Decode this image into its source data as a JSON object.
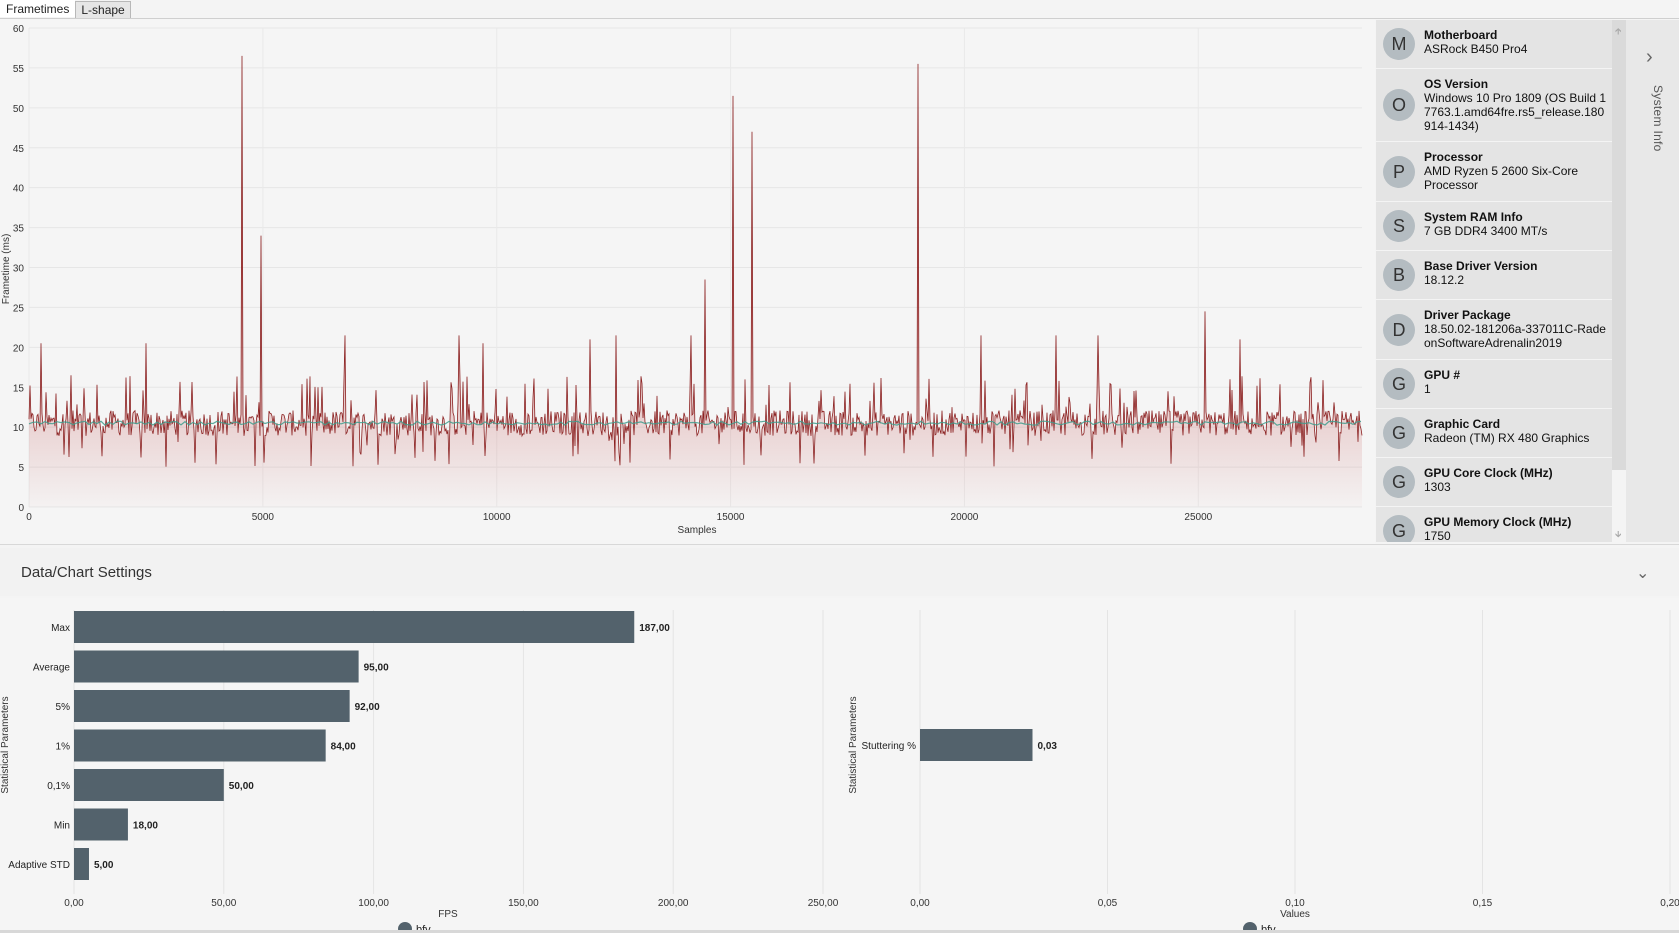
{
  "tabs": [
    {
      "label": "Frametimes",
      "active": true
    },
    {
      "label": "L-shape",
      "active": false
    }
  ],
  "frametime_chart": {
    "ylabel": "Frametime (ms)",
    "xlabel": "Samples",
    "y_ticks": [
      "0",
      "5",
      "10",
      "15",
      "20",
      "25",
      "30",
      "35",
      "40",
      "45",
      "50",
      "55",
      "60"
    ],
    "x_ticks": [
      "0",
      "5000",
      "10000",
      "15000",
      "20000",
      "25000"
    ],
    "line_color": "#8b2020",
    "fill_color": "#b83a3a",
    "avg_line_color": "#3f9c8c"
  },
  "chart_data": [
    {
      "type": "line",
      "title": "",
      "xlabel": "Samples",
      "ylabel": "Frametime (ms)",
      "xlim": [
        0,
        28500
      ],
      "ylim": [
        0,
        60
      ],
      "baseline_ms": 10.5,
      "spikes": [
        {
          "x": 250,
          "y": 20.5
        },
        {
          "x": 900,
          "y": 16.5
        },
        {
          "x": 2500,
          "y": 20.5
        },
        {
          "x": 4550,
          "y": 56.5
        },
        {
          "x": 4950,
          "y": 34
        },
        {
          "x": 6750,
          "y": 21.5
        },
        {
          "x": 9200,
          "y": 21.5
        },
        {
          "x": 9700,
          "y": 20.5
        },
        {
          "x": 12000,
          "y": 21
        },
        {
          "x": 12550,
          "y": 21.5
        },
        {
          "x": 14150,
          "y": 21.5
        },
        {
          "x": 14450,
          "y": 28.5
        },
        {
          "x": 15050,
          "y": 51.5
        },
        {
          "x": 15450,
          "y": 47
        },
        {
          "x": 19000,
          "y": 55.5
        },
        {
          "x": 20350,
          "y": 21.5
        },
        {
          "x": 21950,
          "y": 21.5
        },
        {
          "x": 22850,
          "y": 21.5
        },
        {
          "x": 25150,
          "y": 24.5
        },
        {
          "x": 25900,
          "y": 21
        }
      ]
    },
    {
      "type": "bar",
      "orientation": "horizontal",
      "title": "",
      "xlabel": "FPS",
      "ylabel": "Statistical Parameters",
      "categories": [
        "Max",
        "Average",
        "5%",
        "1%",
        "0,1%",
        "Min",
        "Adaptive STD"
      ],
      "series": [
        {
          "name": "bfv",
          "values": [
            187,
            95,
            92,
            84,
            50,
            18,
            5
          ]
        }
      ],
      "value_labels": [
        "187,00",
        "95,00",
        "92,00",
        "84,00",
        "50,00",
        "18,00",
        "5,00"
      ],
      "x_ticks": [
        "0,00",
        "50,00",
        "100,00",
        "150,00",
        "200,00",
        "250,00"
      ],
      "xlim": [
        0,
        250
      ],
      "legend": "bottom-center",
      "color": "#53626c"
    },
    {
      "type": "bar",
      "orientation": "horizontal",
      "title": "",
      "xlabel": "Values",
      "ylabel": "Statistical Parameters",
      "categories": [
        "Stuttering %"
      ],
      "series": [
        {
          "name": "bfv",
          "values": [
            0.03
          ]
        }
      ],
      "value_labels": [
        "0,03"
      ],
      "x_ticks": [
        "0,00",
        "0,05",
        "0,10",
        "0,15",
        "0,20"
      ],
      "xlim": [
        0,
        0.2
      ],
      "legend": "bottom-center",
      "color": "#53626c"
    }
  ],
  "system_info": {
    "flyout_label": "System Info",
    "items": [
      {
        "initial": "M",
        "title": "Motherboard",
        "value": "ASRock B450 Pro4"
      },
      {
        "initial": "O",
        "title": "OS Version",
        "value": "Windows 10 Pro 1809 (OS Build 17763.1.amd64fre.rs5_release.180914-1434)"
      },
      {
        "initial": "P",
        "title": "Processor",
        "value": "AMD Ryzen 5 2600 Six-Core Processor"
      },
      {
        "initial": "S",
        "title": "System RAM Info",
        "value": "7 GB DDR4 3400 MT/s"
      },
      {
        "initial": "B",
        "title": "Base Driver Version",
        "value": "18.12.2"
      },
      {
        "initial": "D",
        "title": "Driver Package",
        "value": "18.50.02-181206a-337011C-RadeonSoftwareAdrenalin2019"
      },
      {
        "initial": "G",
        "title": "GPU #",
        "value": "1"
      },
      {
        "initial": "G",
        "title": "Graphic Card",
        "value": "Radeon (TM) RX 480 Graphics"
      },
      {
        "initial": "G",
        "title": "GPU Core Clock (MHz)",
        "value": "1303"
      },
      {
        "initial": "G",
        "title": "GPU Memory Clock (MHz)",
        "value": "1750"
      }
    ]
  },
  "settings": {
    "title": "Data/Chart Settings"
  },
  "icons": {
    "flyout": "chevron-right-icon",
    "settings": "chevron-down-icon"
  }
}
